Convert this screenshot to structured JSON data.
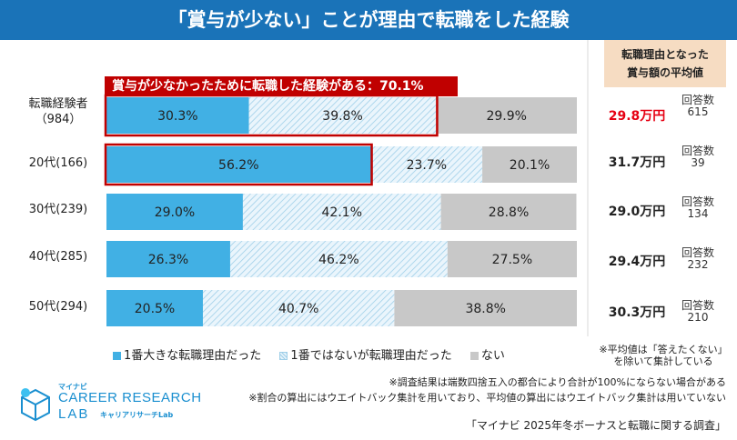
{
  "title": "「賞与が少ない」ことが理由で転職をした経験",
  "right_header": {
    "line1": "転職理由となった",
    "line2": "賞与額の平均値"
  },
  "callout": "賞与が少なかったために転職した経験がある：70.1%",
  "colors": {
    "title_bg": "#1a73b8",
    "blue": "#41b0e4",
    "hatch": "#9fcfe8",
    "gray": "#c8c8c8",
    "highlight": "#c00000",
    "avg_red": "#e60012"
  },
  "chart_data": {
    "type": "bar",
    "orientation": "horizontal",
    "stacked": true,
    "percent": true,
    "categories": [
      "転職経験者（984）",
      "20代(166)",
      "30代(239)",
      "40代(285)",
      "50代(294)"
    ],
    "series": [
      {
        "name": "1番大きな転職理由だった",
        "values": [
          30.3,
          56.2,
          29.0,
          26.3,
          20.5
        ],
        "labels": [
          "30.3%",
          "56.2%",
          "29.0%",
          "26.3%",
          "20.5%"
        ]
      },
      {
        "name": "1番ではないが転職理由だった",
        "values": [
          39.8,
          23.7,
          42.1,
          46.2,
          40.7
        ],
        "labels": [
          "39.8%",
          "23.7%",
          "42.1%",
          "46.2%",
          "40.7%"
        ]
      },
      {
        "name": "ない",
        "values": [
          29.9,
          20.1,
          28.8,
          27.5,
          38.8
        ],
        "labels": [
          "29.9%",
          "20.1%",
          "28.8%",
          "27.5%",
          "38.8%"
        ]
      }
    ],
    "highlighted": [
      {
        "row": 0,
        "through_series": 1
      },
      {
        "row": 1,
        "through_series": 0
      }
    ]
  },
  "rows": [
    {
      "label_line1": "転職経験者",
      "label_line2": "（984）",
      "avg": "29.8万円",
      "count_label": "回答数",
      "count": "615"
    },
    {
      "label_line1": "20代(166)",
      "label_line2": "",
      "avg": "31.7万円",
      "count_label": "回答数",
      "count": "39"
    },
    {
      "label_line1": "30代(239)",
      "label_line2": "",
      "avg": "29.0万円",
      "count_label": "回答数",
      "count": "134"
    },
    {
      "label_line1": "40代(285)",
      "label_line2": "",
      "avg": "29.4万円",
      "count_label": "回答数",
      "count": "232"
    },
    {
      "label_line1": "50代(294)",
      "label_line2": "",
      "avg": "30.3万円",
      "count_label": "回答数",
      "count": "210"
    }
  ],
  "legend": {
    "s1": "1番大きな転職理由だった",
    "s2": "1番ではないが転職理由だった",
    "s3": "ない"
  },
  "avg_note": {
    "line1": "※平均値は「答えたくない」",
    "line2": "を除いて集計している"
  },
  "footnotes": [
    "※調査結果は端数四捨五入の都合により合計が100%にならない場合がある",
    "※割合の算出にはウエイトバック集計を用いており、平均値の算出にはウエイトバック集計は用いていない"
  ],
  "source": "「マイナビ 2025年冬ボーナスと転職に関する調査」",
  "logo": {
    "small": "マイナビ",
    "big": "CAREER RESEARCH",
    "lab": "LAB",
    "kana": "キャリアリサーチLab"
  }
}
